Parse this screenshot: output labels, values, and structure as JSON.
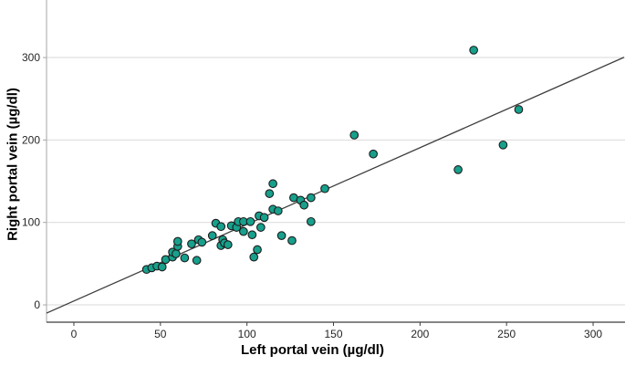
{
  "chart_data": {
    "type": "scatter",
    "title": "",
    "xlabel": "Left portal vein (µg/dl)",
    "ylabel": "Right portal vein (µg/dl)",
    "x_ticks": [
      0,
      50,
      100,
      150,
      200,
      250,
      300
    ],
    "y_ticks": [
      0,
      100,
      200,
      300
    ],
    "xlim": [
      -15.8,
      317.9
    ],
    "ylim": [
      -21.0,
      369.8
    ],
    "grid": "horizontal-only",
    "legend": "none",
    "points": [
      [
        42,
        43
      ],
      [
        45,
        45
      ],
      [
        48,
        47
      ],
      [
        51,
        46
      ],
      [
        53,
        55
      ],
      [
        57,
        58
      ],
      [
        57,
        64
      ],
      [
        59,
        62
      ],
      [
        60,
        71
      ],
      [
        60,
        77
      ],
      [
        64,
        57
      ],
      [
        68,
        74
      ],
      [
        71,
        54
      ],
      [
        72,
        79
      ],
      [
        74,
        76
      ],
      [
        80,
        84
      ],
      [
        82,
        99
      ],
      [
        85,
        72
      ],
      [
        85,
        95
      ],
      [
        86,
        79
      ],
      [
        87,
        75
      ],
      [
        89,
        73
      ],
      [
        91,
        96
      ],
      [
        94,
        94
      ],
      [
        95,
        101
      ],
      [
        98,
        89
      ],
      [
        98,
        101
      ],
      [
        102,
        101
      ],
      [
        103,
        85
      ],
      [
        104,
        58
      ],
      [
        106,
        67
      ],
      [
        107,
        108
      ],
      [
        108,
        94
      ],
      [
        110,
        106
      ],
      [
        113,
        135
      ],
      [
        115,
        116
      ],
      [
        115,
        147
      ],
      [
        118,
        114
      ],
      [
        120,
        84
      ],
      [
        126,
        78
      ],
      [
        127,
        130
      ],
      [
        131,
        127
      ],
      [
        133,
        121
      ],
      [
        137,
        101
      ],
      [
        137,
        130
      ],
      [
        145,
        141
      ],
      [
        162,
        206
      ],
      [
        173,
        183
      ],
      [
        222,
        164
      ],
      [
        231,
        309
      ],
      [
        248,
        194
      ],
      [
        257,
        237
      ]
    ],
    "reference_line": {
      "slope": 0.93,
      "intercept": 4.7,
      "x_start": -15.8,
      "x_end": 317.9
    },
    "marker": {
      "radius_px": 4.3,
      "stroke_width_px": 1.1
    },
    "colors": {
      "point_fill": "#17a08c",
      "point_stroke": "#1c1c1c",
      "line": "#3d3d3d",
      "grid": "#d9d9d9",
      "axis": "#3d3d3d",
      "frame": "#a6a6a6",
      "tick_label": "#262626",
      "title": "#000000",
      "background": "#ffffff"
    }
  }
}
